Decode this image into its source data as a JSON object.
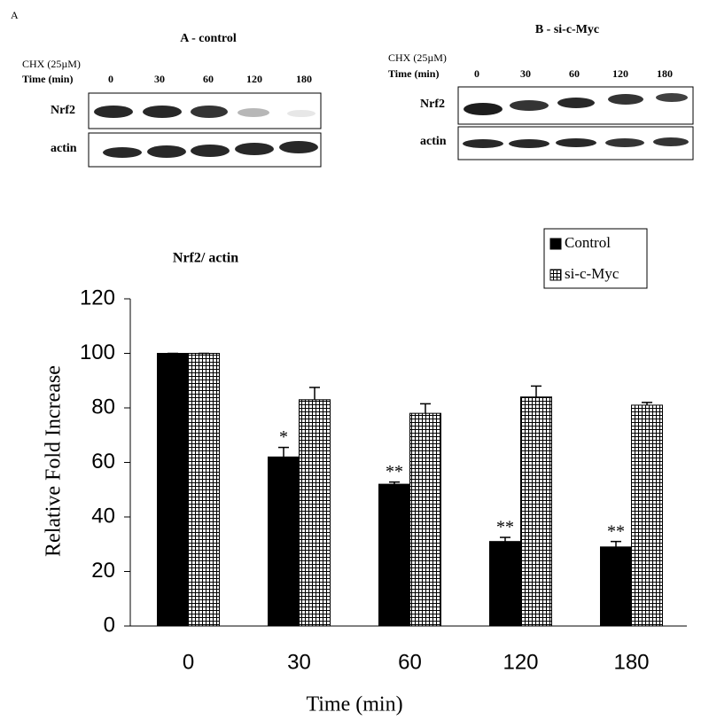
{
  "panel_label": "A",
  "blots": [
    {
      "title": "A - control",
      "treatment": "CHX (25µM)",
      "time_label": "Time (min)",
      "times": [
        "0",
        "30",
        "60",
        "120",
        "180"
      ],
      "rows": [
        "Nrf2",
        "actin"
      ]
    },
    {
      "title": "B - si-c-Myc",
      "treatment": "CHX (25µM)",
      "time_label": "Time (min)",
      "times": [
        "0",
        "30",
        "60",
        "120",
        "180"
      ],
      "rows": [
        "Nrf2",
        "actin"
      ]
    }
  ],
  "chart_data": {
    "type": "bar",
    "title": "Nrf2/ actin",
    "x_label": "Time (min)",
    "y_label": "Relative Fold Increase",
    "categories": [
      "0",
      "30",
      "60",
      "120",
      "180"
    ],
    "series": [
      {
        "name": "Control",
        "color": "#000000",
        "values": [
          100,
          62,
          52,
          31,
          29
        ],
        "errors": [
          0,
          3.5,
          0.8,
          1.5,
          2
        ]
      },
      {
        "name": "si-c-Myc",
        "color": "#000000",
        "pattern": "grid",
        "values": [
          100,
          83,
          78,
          84,
          81
        ],
        "errors": [
          0,
          4.5,
          3.5,
          4,
          1
        ]
      }
    ],
    "annotations": [
      {
        "category": "30",
        "series": "Control",
        "text": "*"
      },
      {
        "category": "60",
        "series": "Control",
        "text": "**"
      },
      {
        "category": "120",
        "series": "Control",
        "text": "**"
      },
      {
        "category": "180",
        "series": "Control",
        "text": "**"
      }
    ],
    "ylim": [
      0,
      120
    ],
    "yticks": [
      0,
      20,
      40,
      60,
      80,
      100,
      120
    ],
    "legend": "upper right"
  }
}
